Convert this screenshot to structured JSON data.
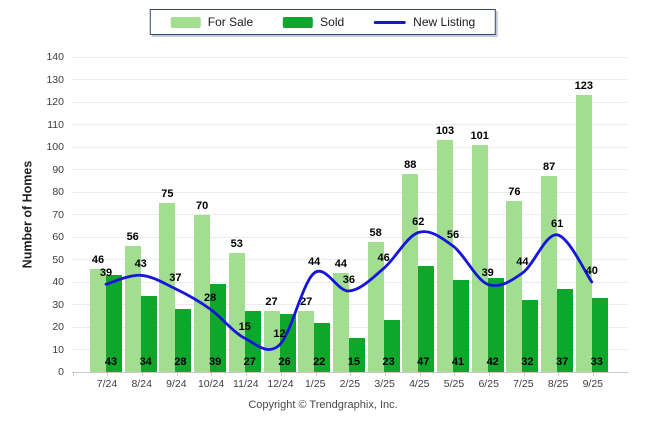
{
  "chart_data": {
    "type": "bar+line",
    "title": "",
    "categories": [
      "7/24",
      "8/24",
      "9/24",
      "10/24",
      "11/24",
      "12/24",
      "1/25",
      "2/25",
      "3/25",
      "4/25",
      "5/25",
      "6/25",
      "7/25",
      "8/25",
      "9/25"
    ],
    "series": [
      {
        "name": "For Sale",
        "type": "bar",
        "color": "#a2de8f",
        "values": [
          46,
          56,
          75,
          70,
          53,
          27,
          27,
          44,
          58,
          88,
          103,
          101,
          76,
          87,
          123
        ]
      },
      {
        "name": "Sold",
        "type": "bar",
        "color": "#0ea62b",
        "values": [
          43,
          34,
          28,
          39,
          27,
          26,
          22,
          15,
          23,
          47,
          41,
          42,
          32,
          37,
          33
        ]
      },
      {
        "name": "New Listing",
        "type": "line",
        "color": "#1515db",
        "values": [
          39,
          43,
          37,
          28,
          15,
          12,
          44,
          36,
          46,
          62,
          56,
          39,
          44,
          61,
          40
        ]
      }
    ],
    "xlabel": "",
    "ylabel": "Number of Homes",
    "ylim": [
      0,
      140
    ],
    "ytick_step": 10,
    "grid": true,
    "legend_position": "top-center",
    "data_labels": true
  },
  "footer": {
    "copyright": "Copyright © Trendgraphix, Inc."
  },
  "colors": {
    "grid": "#ececec",
    "axis": "#c9c9c9",
    "data_label": "#000000",
    "tick_text": "#3d3d3d",
    "legend_border": "#35486b"
  }
}
